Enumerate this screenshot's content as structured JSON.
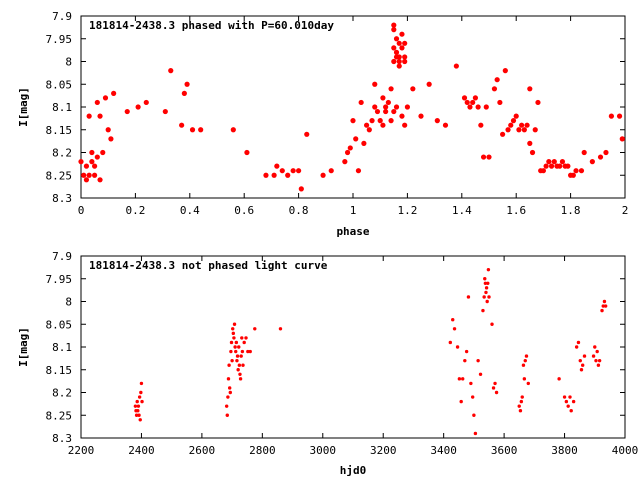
{
  "chart_data": [
    {
      "type": "scatter",
      "title": "181814-2438.3 phased with P=60.010day",
      "xlabel": "phase",
      "ylabel": "I[mag]",
      "xlim": [
        0,
        2
      ],
      "ylim": [
        8.3,
        7.9
      ],
      "y_inverted": true,
      "xticks": [
        "0",
        "0.2",
        "0.4",
        "0.6",
        "0.8",
        "1",
        "1.2",
        "1.4",
        "1.6",
        "1.8",
        "2"
      ],
      "yticks": [
        "7.9",
        "7.95",
        "8",
        "8.05",
        "8.1",
        "8.15",
        "8.2",
        "8.25",
        "8.3"
      ],
      "grid": false,
      "marker_color": "#ff0000",
      "series": [
        {
          "points": [
            [
              0.0,
              8.22
            ],
            [
              0.01,
              8.25
            ],
            [
              0.02,
              8.23
            ],
            [
              0.02,
              8.26
            ],
            [
              0.03,
              8.12
            ],
            [
              0.03,
              8.25
            ],
            [
              0.04,
              8.22
            ],
            [
              0.04,
              8.2
            ],
            [
              0.05,
              8.23
            ],
            [
              0.05,
              8.25
            ],
            [
              0.06,
              8.09
            ],
            [
              0.06,
              8.21
            ],
            [
              0.07,
              8.12
            ],
            [
              0.07,
              8.26
            ],
            [
              0.08,
              8.2
            ],
            [
              0.09,
              8.08
            ],
            [
              0.1,
              8.15
            ],
            [
              0.11,
              8.17
            ],
            [
              0.12,
              8.07
            ],
            [
              0.17,
              8.11
            ],
            [
              0.21,
              8.1
            ],
            [
              0.24,
              8.09
            ],
            [
              0.31,
              8.11
            ],
            [
              0.33,
              8.02
            ],
            [
              0.37,
              8.14
            ],
            [
              0.38,
              8.07
            ],
            [
              0.39,
              8.05
            ],
            [
              0.41,
              8.15
            ],
            [
              0.44,
              8.15
            ],
            [
              0.56,
              8.15
            ],
            [
              0.61,
              8.2
            ],
            [
              0.68,
              8.25
            ],
            [
              0.71,
              8.25
            ],
            [
              0.72,
              8.23
            ],
            [
              0.74,
              8.24
            ],
            [
              0.76,
              8.25
            ],
            [
              0.78,
              8.24
            ],
            [
              0.8,
              8.24
            ],
            [
              0.81,
              8.28
            ],
            [
              0.83,
              8.16
            ],
            [
              0.89,
              8.25
            ],
            [
              0.92,
              8.24
            ],
            [
              0.97,
              8.22
            ],
            [
              0.98,
              8.2
            ],
            [
              0.99,
              8.19
            ],
            [
              1.0,
              8.13
            ],
            [
              1.01,
              8.17
            ],
            [
              1.02,
              8.24
            ],
            [
              1.03,
              8.09
            ],
            [
              1.04,
              8.18
            ],
            [
              1.05,
              8.14
            ],
            [
              1.06,
              8.15
            ],
            [
              1.07,
              8.13
            ],
            [
              1.08,
              8.1
            ],
            [
              1.08,
              8.05
            ],
            [
              1.09,
              8.11
            ],
            [
              1.1,
              8.13
            ],
            [
              1.11,
              8.14
            ],
            [
              1.11,
              8.08
            ],
            [
              1.12,
              8.11
            ],
            [
              1.12,
              8.1
            ],
            [
              1.13,
              8.09
            ],
            [
              1.14,
              8.06
            ],
            [
              1.14,
              8.13
            ],
            [
              1.15,
              8.11
            ],
            [
              1.16,
              8.1
            ],
            [
              1.15,
              7.93
            ],
            [
              1.15,
              7.97
            ],
            [
              1.15,
              8.0
            ],
            [
              1.16,
              7.95
            ],
            [
              1.16,
              7.98
            ],
            [
              1.16,
              7.99
            ],
            [
              1.17,
              7.96
            ],
            [
              1.17,
              7.99
            ],
            [
              1.17,
              8.0
            ],
            [
              1.18,
              7.94
            ],
            [
              1.18,
              7.97
            ],
            [
              1.19,
              7.96
            ],
            [
              1.19,
              7.99
            ],
            [
              1.19,
              8.0
            ],
            [
              1.15,
              7.92
            ],
            [
              1.17,
              8.01
            ],
            [
              1.18,
              8.12
            ],
            [
              1.19,
              8.14
            ],
            [
              1.2,
              8.1
            ],
            [
              1.22,
              8.06
            ],
            [
              1.25,
              8.12
            ],
            [
              1.28,
              8.05
            ],
            [
              1.31,
              8.13
            ],
            [
              1.34,
              8.14
            ],
            [
              1.38,
              8.01
            ],
            [
              1.41,
              8.08
            ],
            [
              1.42,
              8.09
            ],
            [
              1.43,
              8.1
            ],
            [
              1.44,
              8.09
            ],
            [
              1.45,
              8.08
            ],
            [
              1.46,
              8.1
            ],
            [
              1.47,
              8.14
            ],
            [
              1.48,
              8.21
            ],
            [
              1.49,
              8.1
            ],
            [
              1.5,
              8.21
            ],
            [
              1.52,
              8.06
            ],
            [
              1.53,
              8.04
            ],
            [
              1.54,
              8.09
            ],
            [
              1.55,
              8.16
            ],
            [
              1.56,
              8.02
            ],
            [
              1.57,
              8.15
            ],
            [
              1.58,
              8.14
            ],
            [
              1.59,
              8.13
            ],
            [
              1.6,
              8.12
            ],
            [
              1.61,
              8.15
            ],
            [
              1.62,
              8.14
            ],
            [
              1.63,
              8.15
            ],
            [
              1.64,
              8.14
            ],
            [
              1.65,
              8.06
            ],
            [
              1.65,
              8.18
            ],
            [
              1.66,
              8.2
            ],
            [
              1.67,
              8.15
            ],
            [
              1.68,
              8.09
            ],
            [
              1.69,
              8.24
            ],
            [
              1.7,
              8.24
            ],
            [
              1.71,
              8.23
            ],
            [
              1.72,
              8.22
            ],
            [
              1.73,
              8.23
            ],
            [
              1.74,
              8.22
            ],
            [
              1.75,
              8.23
            ],
            [
              1.76,
              8.23
            ],
            [
              1.77,
              8.22
            ],
            [
              1.78,
              8.23
            ],
            [
              1.79,
              8.23
            ],
            [
              1.8,
              8.25
            ],
            [
              1.81,
              8.25
            ],
            [
              1.82,
              8.24
            ],
            [
              1.84,
              8.24
            ],
            [
              1.85,
              8.2
            ],
            [
              1.88,
              8.22
            ],
            [
              1.91,
              8.21
            ],
            [
              1.93,
              8.2
            ],
            [
              1.95,
              8.12
            ],
            [
              1.98,
              8.12
            ],
            [
              1.99,
              8.17
            ]
          ]
        }
      ]
    },
    {
      "type": "scatter",
      "title": "181814-2438.3 not phased light curve",
      "xlabel": "hjd0",
      "ylabel": "I[mag]",
      "xlim": [
        2200,
        4000
      ],
      "ylim": [
        8.3,
        7.9
      ],
      "y_inverted": true,
      "xticks": [
        "2200",
        "2400",
        "2600",
        "2800",
        "3000",
        "3200",
        "3400",
        "3600",
        "3800",
        "4000"
      ],
      "yticks": [
        "7.9",
        "7.95",
        "8",
        "8.05",
        "8.1",
        "8.15",
        "8.2",
        "8.25",
        "8.3"
      ],
      "grid": false,
      "marker_color": "#ff0000",
      "series": [
        {
          "points": [
            [
              2380,
              8.23
            ],
            [
              2382,
              8.24
            ],
            [
              2384,
              8.25
            ],
            [
              2386,
              8.22
            ],
            [
              2388,
              8.24
            ],
            [
              2390,
              8.23
            ],
            [
              2392,
              8.25
            ],
            [
              2394,
              8.21
            ],
            [
              2396,
              8.26
            ],
            [
              2398,
              8.2
            ],
            [
              2400,
              8.18
            ],
            [
              2402,
              8.22
            ],
            [
              2682,
              8.23
            ],
            [
              2684,
              8.25
            ],
            [
              2686,
              8.21
            ],
            [
              2688,
              8.17
            ],
            [
              2690,
              8.14
            ],
            [
              2692,
              8.19
            ],
            [
              2694,
              8.2
            ],
            [
              2696,
              8.11
            ],
            [
              2698,
              8.09
            ],
            [
              2700,
              8.13
            ],
            [
              2702,
              8.06
            ],
            [
              2704,
              8.07
            ],
            [
              2706,
              8.08
            ],
            [
              2708,
              8.05
            ],
            [
              2710,
              8.1
            ],
            [
              2712,
              8.11
            ],
            [
              2714,
              8.09
            ],
            [
              2716,
              8.13
            ],
            [
              2718,
              8.12
            ],
            [
              2720,
              8.15
            ],
            [
              2722,
              8.1
            ],
            [
              2724,
              8.14
            ],
            [
              2726,
              8.16
            ],
            [
              2728,
              8.17
            ],
            [
              2730,
              8.12
            ],
            [
              2732,
              8.08
            ],
            [
              2734,
              8.11
            ],
            [
              2736,
              8.14
            ],
            [
              2740,
              8.09
            ],
            [
              2746,
              8.08
            ],
            [
              2752,
              8.11
            ],
            [
              2760,
              8.11
            ],
            [
              2775,
              8.06
            ],
            [
              2860,
              8.06
            ],
            [
              3422,
              8.09
            ],
            [
              3430,
              8.04
            ],
            [
              3436,
              8.06
            ],
            [
              3446,
              8.1
            ],
            [
              3452,
              8.17
            ],
            [
              3458,
              8.22
            ],
            [
              3463,
              8.17
            ],
            [
              3470,
              8.13
            ],
            [
              3476,
              8.11
            ],
            [
              3482,
              7.99
            ],
            [
              3490,
              8.18
            ],
            [
              3496,
              8.21
            ],
            [
              3500,
              8.25
            ],
            [
              3505,
              8.29
            ],
            [
              3514,
              8.13
            ],
            [
              3522,
              8.16
            ],
            [
              3530,
              8.02
            ],
            [
              3534,
              7.99
            ],
            [
              3536,
              7.95
            ],
            [
              3538,
              7.96
            ],
            [
              3540,
              7.98
            ],
            [
              3542,
              7.97
            ],
            [
              3544,
              8.0
            ],
            [
              3546,
              7.96
            ],
            [
              3548,
              7.93
            ],
            [
              3550,
              7.99
            ],
            [
              3560,
              8.05
            ],
            [
              3565,
              8.19
            ],
            [
              3570,
              8.18
            ],
            [
              3575,
              8.2
            ],
            [
              3650,
              8.23
            ],
            [
              3654,
              8.24
            ],
            [
              3657,
              8.22
            ],
            [
              3660,
              8.21
            ],
            [
              3664,
              8.14
            ],
            [
              3667,
              8.17
            ],
            [
              3670,
              8.13
            ],
            [
              3674,
              8.12
            ],
            [
              3680,
              8.18
            ],
            [
              3782,
              8.17
            ],
            [
              3800,
              8.21
            ],
            [
              3806,
              8.22
            ],
            [
              3812,
              8.23
            ],
            [
              3818,
              8.21
            ],
            [
              3822,
              8.24
            ],
            [
              3830,
              8.22
            ],
            [
              3840,
              8.1
            ],
            [
              3846,
              8.09
            ],
            [
              3852,
              8.13
            ],
            [
              3856,
              8.15
            ],
            [
              3860,
              8.14
            ],
            [
              3866,
              8.12
            ],
            [
              3896,
              8.12
            ],
            [
              3900,
              8.1
            ],
            [
              3904,
              8.13
            ],
            [
              3908,
              8.11
            ],
            [
              3912,
              8.14
            ],
            [
              3916,
              8.13
            ],
            [
              3924,
              8.02
            ],
            [
              3928,
              8.01
            ],
            [
              3932,
              8.0
            ],
            [
              3936,
              8.01
            ]
          ]
        }
      ]
    }
  ]
}
